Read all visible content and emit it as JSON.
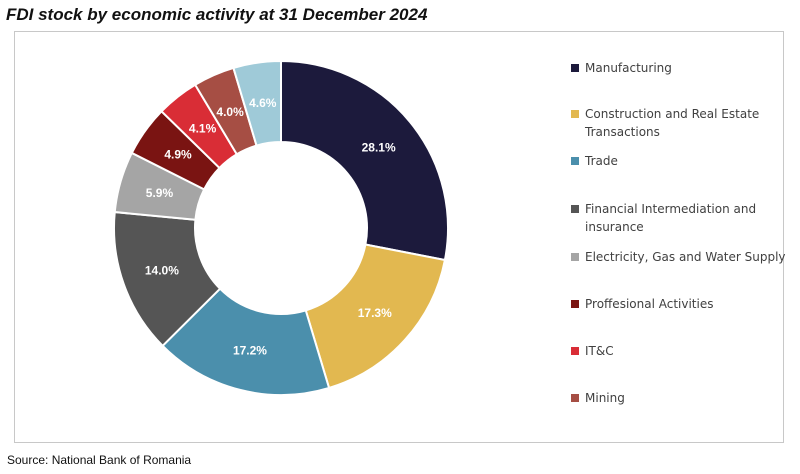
{
  "title": "FDI stock by economic activity at 31 December 2024",
  "source": "Source: National Bank of Romania",
  "chart_data": {
    "type": "pie",
    "donut": true,
    "legend_position": "right",
    "slices": [
      {
        "label": "Manufacturing",
        "value": 28.1,
        "display": "28.1%",
        "color": "#1c1a3c"
      },
      {
        "label": "Construction and Real Estate Transactions",
        "value": 17.3,
        "display": "17.3%",
        "color": "#e2b850"
      },
      {
        "label": "Trade",
        "value": 17.2,
        "display": "17.2%",
        "color": "#4b8fac"
      },
      {
        "label": "Financial Intermediation and insurance",
        "value": 14.0,
        "display": "14.0%",
        "color": "#555555"
      },
      {
        "label": "Electricity, Gas and Water Supply",
        "value": 5.9,
        "display": "5.9%",
        "color": "#a5a5a5"
      },
      {
        "label": "Proffesional Activities",
        "value": 4.9,
        "display": "4.9%",
        "color": "#7a1412"
      },
      {
        "label": "IT&C",
        "value": 4.1,
        "display": "4.1%",
        "color": "#d92d36"
      },
      {
        "label": "Mining",
        "value": 4.0,
        "display": "4.0%",
        "color": "#a64e44"
      },
      {
        "label": "",
        "value": 4.6,
        "display": "4.6%",
        "color": "#9fcad8"
      }
    ]
  }
}
